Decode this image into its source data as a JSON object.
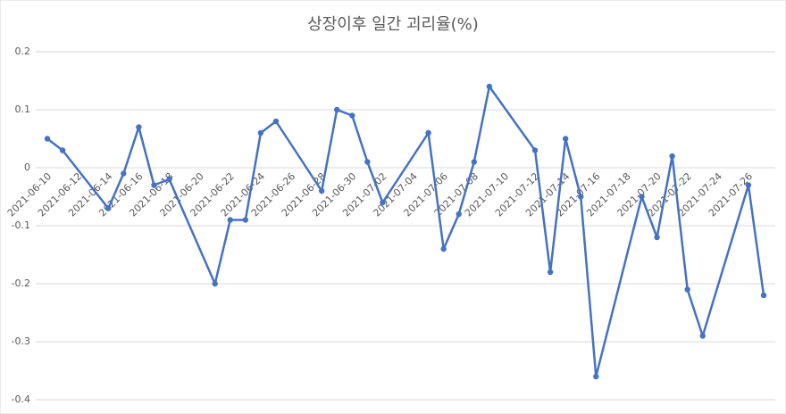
{
  "chart_data": {
    "type": "line",
    "title": "상장이후 일간 괴리율(%)",
    "x": [
      "2021-06-10",
      "2021-06-11",
      "2021-06-14",
      "2021-06-15",
      "2021-06-16",
      "2021-06-17",
      "2021-06-18",
      "2021-06-21",
      "2021-06-22",
      "2021-06-23",
      "2021-06-24",
      "2021-06-25",
      "2021-06-28",
      "2021-06-29",
      "2021-06-30",
      "2021-07-01",
      "2021-07-02",
      "2021-07-05",
      "2021-07-06",
      "2021-07-07",
      "2021-07-08",
      "2021-07-09",
      "2021-07-12",
      "2021-07-13",
      "2021-07-14",
      "2021-07-15",
      "2021-07-16",
      "2021-07-19",
      "2021-07-20",
      "2021-07-21",
      "2021-07-22",
      "2021-07-23",
      "2021-07-26",
      "2021-07-27"
    ],
    "series": [
      {
        "color": "#4472c4",
        "values": [
          0.05,
          0.03,
          -0.07,
          -0.01,
          0.07,
          -0.03,
          -0.02,
          -0.2,
          -0.09,
          -0.09,
          0.06,
          0.08,
          -0.04,
          0.1,
          0.09,
          0.01,
          -0.06,
          0.06,
          -0.14,
          -0.08,
          0.01,
          0.14,
          0.03,
          -0.18,
          0.05,
          -0.05,
          -0.36,
          -0.05,
          -0.12,
          0.02,
          -0.21,
          -0.29,
          -0.03,
          -0.22
        ]
      }
    ],
    "xlim": [
      "2021-06-10",
      "2021-07-27"
    ],
    "xticks": [
      "2021-06-10",
      "2021-06-12",
      "2021-06-14",
      "2021-06-16",
      "2021-06-18",
      "2021-06-20",
      "2021-06-22",
      "2021-06-24",
      "2021-06-26",
      "2021-06-28",
      "2021-06-30",
      "2021-07-02",
      "2021-07-04",
      "2021-07-06",
      "2021-07-08",
      "2021-07-10",
      "2021-07-12",
      "2021-07-14",
      "2021-07-16",
      "2021-07-18",
      "2021-07-20",
      "2021-07-22",
      "2021-07-24",
      "2021-07-26"
    ],
    "ylim": [
      -0.4,
      0.2
    ],
    "yticks": [
      0.2,
      0.1,
      0,
      -0.1,
      -0.2,
      -0.3,
      -0.4
    ],
    "grid": true
  }
}
